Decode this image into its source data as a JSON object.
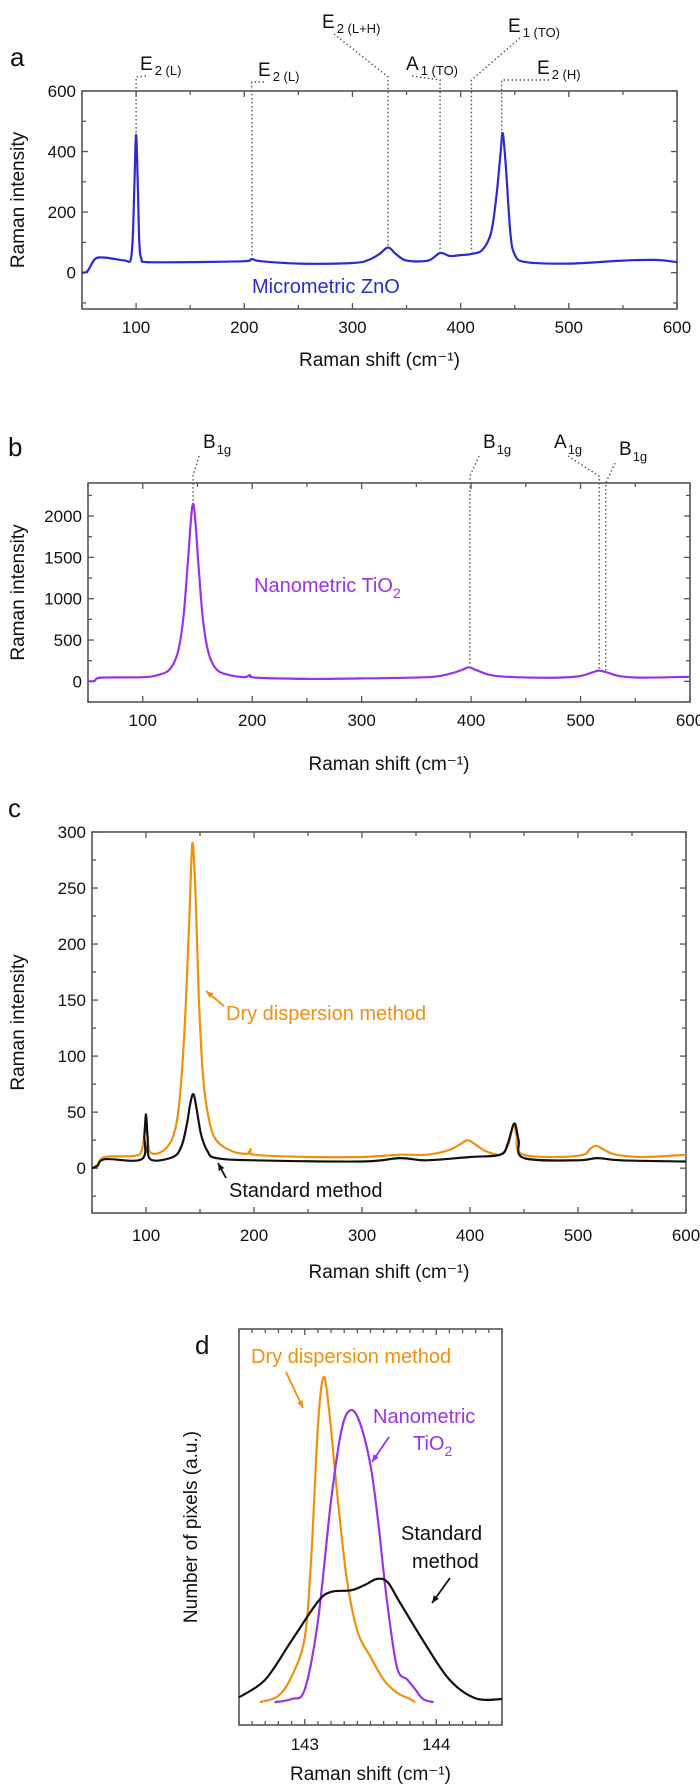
{
  "colors": {
    "zno": "#2b2bd0",
    "tio2": "#9a33e6",
    "dry": "#f0900f",
    "standard": "#111111",
    "frame": "#555555"
  },
  "chart_data": [
    {
      "panel": "a",
      "type": "line",
      "xlabel": "Raman shift (cm⁻¹)",
      "ylabel": "Raman intensity",
      "xlim": [
        50,
        600
      ],
      "ylim": [
        -120,
        600
      ],
      "xticks": [
        100,
        200,
        300,
        400,
        500,
        600
      ],
      "yticks": [
        0,
        200,
        400,
        600
      ],
      "series": [
        {
          "name": "Micrometric ZnO",
          "color_key": "zno",
          "points": [
            [
              50,
              0
            ],
            [
              55,
              5
            ],
            [
              62,
              45
            ],
            [
              70,
              50
            ],
            [
              80,
              45
            ],
            [
              90,
              40
            ],
            [
              95,
              42
            ],
            [
              97,
              120
            ],
            [
              98.5,
              300
            ],
            [
              100,
              455
            ],
            [
              101.5,
              300
            ],
            [
              103,
              100
            ],
            [
              105,
              45
            ],
            [
              110,
              35
            ],
            [
              150,
              35
            ],
            [
              200,
              38
            ],
            [
              207,
              45
            ],
            [
              215,
              38
            ],
            [
              250,
              30
            ],
            [
              300,
              32
            ],
            [
              315,
              42
            ],
            [
              325,
              62
            ],
            [
              333,
              83
            ],
            [
              340,
              62
            ],
            [
              350,
              40
            ],
            [
              370,
              40
            ],
            [
              381,
              65
            ],
            [
              390,
              55
            ],
            [
              400,
              58
            ],
            [
              410,
              62
            ],
            [
              420,
              75
            ],
            [
              428,
              130
            ],
            [
              433,
              250
            ],
            [
              437,
              400
            ],
            [
              439,
              460
            ],
            [
              442,
              340
            ],
            [
              446,
              130
            ],
            [
              450,
              60
            ],
            [
              460,
              35
            ],
            [
              500,
              30
            ],
            [
              550,
              40
            ],
            [
              580,
              42
            ],
            [
              600,
              35
            ]
          ]
        }
      ],
      "annotation_text": "Micrometric ZnO",
      "peak_labels": [
        {
          "base": "E",
          "sub": "2 (L)",
          "x": 100
        },
        {
          "base": "E",
          "sub": "2 (L)",
          "x": 207
        },
        {
          "base": "E",
          "sub": "2 (L+H)",
          "x": 333
        },
        {
          "base": "A",
          "sub": "1 (TO)",
          "x": 381
        },
        {
          "base": "E",
          "sub": "1 (TO)",
          "x": 410
        },
        {
          "base": "E",
          "sub": "2 (H)",
          "x": 438
        }
      ]
    },
    {
      "panel": "b",
      "type": "line",
      "xlabel": "Raman shift (cm⁻¹)",
      "ylabel": "Raman intensity",
      "xlim": [
        50,
        600
      ],
      "ylim": [
        -250,
        2400
      ],
      "xticks": [
        100,
        200,
        300,
        400,
        500,
        600
      ],
      "yticks": [
        0,
        500,
        1000,
        1500,
        2000
      ],
      "series": [
        {
          "name": "Nanometric TiO2",
          "color_key": "tio2",
          "points": [
            [
              50,
              0
            ],
            [
              56,
              5
            ],
            [
              62,
              45
            ],
            [
              100,
              50
            ],
            [
              115,
              80
            ],
            [
              125,
              150
            ],
            [
              132,
              350
            ],
            [
              137,
              750
            ],
            [
              141,
              1400
            ],
            [
              144,
              1950
            ],
            [
              146,
              2150
            ],
            [
              148,
              1950
            ],
            [
              151,
              1400
            ],
            [
              155,
              750
            ],
            [
              160,
              350
            ],
            [
              167,
              150
            ],
            [
              178,
              80
            ],
            [
              193,
              50
            ],
            [
              198,
              75
            ],
            [
              203,
              45
            ],
            [
              250,
              30
            ],
            [
              300,
              35
            ],
            [
              360,
              50
            ],
            [
              380,
              90
            ],
            [
              392,
              140
            ],
            [
              398,
              170
            ],
            [
              405,
              135
            ],
            [
              418,
              75
            ],
            [
              440,
              50
            ],
            [
              480,
              45
            ],
            [
              500,
              65
            ],
            [
              510,
              105
            ],
            [
              517,
              130
            ],
            [
              525,
              105
            ],
            [
              535,
              65
            ],
            [
              555,
              45
            ],
            [
              600,
              55
            ]
          ]
        }
      ],
      "annotation_text": {
        "main": "Nanometric TiO",
        "sub": "2"
      },
      "peak_labels": [
        {
          "base": "B",
          "sub": "1g",
          "x": 146
        },
        {
          "base": "B",
          "sub": "1g",
          "x": 399
        },
        {
          "base": "A",
          "sub": "1g",
          "x": 517
        },
        {
          "base": "B",
          "sub": "1g",
          "x": 523
        }
      ]
    },
    {
      "panel": "c",
      "type": "line",
      "xlabel": "Raman shift (cm⁻¹)",
      "ylabel": "Raman intensity",
      "xlim": [
        50,
        600
      ],
      "ylim": [
        -40,
        300
      ],
      "xticks": [
        100,
        200,
        300,
        400,
        500,
        600
      ],
      "yticks": [
        0,
        50,
        100,
        150,
        200,
        250,
        300
      ],
      "series": [
        {
          "name": "Dry dispersion method",
          "color_key": "dry",
          "points": [
            [
              50,
              0
            ],
            [
              55,
              3
            ],
            [
              62,
              10
            ],
            [
              90,
              11
            ],
            [
              96,
              16
            ],
            [
              98.5,
              30
            ],
            [
              100,
              40
            ],
            [
              101.5,
              28
            ],
            [
              104,
              14
            ],
            [
              115,
              15
            ],
            [
              125,
              28
            ],
            [
              131,
              60
            ],
            [
              136,
              130
            ],
            [
              140,
              220
            ],
            [
              143,
              290
            ],
            [
              146,
              240
            ],
            [
              149,
              150
            ],
            [
              153,
              80
            ],
            [
              158,
              45
            ],
            [
              165,
              25
            ],
            [
              180,
              15
            ],
            [
              195,
              13
            ],
            [
              197,
              17
            ],
            [
              200,
              12
            ],
            [
              250,
              10
            ],
            [
              300,
              10
            ],
            [
              335,
              12
            ],
            [
              360,
              12
            ],
            [
              380,
              16
            ],
            [
              392,
              22
            ],
            [
              398,
              25
            ],
            [
              405,
              21
            ],
            [
              415,
              15
            ],
            [
              428,
              12
            ],
            [
              435,
              20
            ],
            [
              440,
              38
            ],
            [
              443,
              30
            ],
            [
              447,
              13
            ],
            [
              480,
              10
            ],
            [
              505,
              12
            ],
            [
              511,
              17
            ],
            [
              517,
              20
            ],
            [
              525,
              16
            ],
            [
              535,
              12
            ],
            [
              560,
              10
            ],
            [
              600,
              12
            ]
          ]
        },
        {
          "name": "Standard method",
          "color_key": "standard",
          "points": [
            [
              50,
              0
            ],
            [
              55,
              2
            ],
            [
              62,
              8
            ],
            [
              96,
              8
            ],
            [
              98.5,
              30
            ],
            [
              100,
              48
            ],
            [
              101.5,
              28
            ],
            [
              104,
              8
            ],
            [
              125,
              10
            ],
            [
              133,
              20
            ],
            [
              138,
              40
            ],
            [
              141,
              58
            ],
            [
              144,
              66
            ],
            [
              147,
              52
            ],
            [
              151,
              30
            ],
            [
              157,
              15
            ],
            [
              165,
              9
            ],
            [
              200,
              7
            ],
            [
              300,
              6
            ],
            [
              335,
              9
            ],
            [
              360,
              7
            ],
            [
              400,
              10
            ],
            [
              428,
              12
            ],
            [
              435,
              22
            ],
            [
              441,
              40
            ],
            [
              445,
              25
            ],
            [
              450,
              9
            ],
            [
              500,
              7
            ],
            [
              518,
              9
            ],
            [
              540,
              7
            ],
            [
              600,
              6
            ]
          ]
        }
      ],
      "annotations": [
        "Dry dispersion method",
        "Standard method"
      ]
    },
    {
      "panel": "d",
      "type": "line",
      "xlabel": "Raman shift (cm⁻¹)",
      "ylabel": "Number of pixels (a.u.)",
      "xlim": [
        142.5,
        144.5
      ],
      "ylim": [
        -0.07,
        1.15
      ],
      "xticks": [
        143,
        144
      ],
      "yticks": [],
      "series": [
        {
          "name": "Dry dispersion method",
          "color_key": "dry",
          "points": [
            [
              142.66,
              0
            ],
            [
              142.8,
              0.02
            ],
            [
              142.9,
              0.08
            ],
            [
              143.0,
              0.2
            ],
            [
              143.05,
              0.45
            ],
            [
              143.1,
              0.85
            ],
            [
              143.14,
              1.0
            ],
            [
              143.18,
              0.92
            ],
            [
              143.25,
              0.63
            ],
            [
              143.32,
              0.38
            ],
            [
              143.4,
              0.22
            ],
            [
              143.5,
              0.14
            ],
            [
              143.6,
              0.07
            ],
            [
              143.7,
              0.03
            ],
            [
              143.8,
              0.01
            ],
            [
              143.84,
              0.0
            ]
          ]
        },
        {
          "name": "Nanometric TiO2",
          "color_key": "tio2",
          "points": [
            [
              142.77,
              0
            ],
            [
              142.9,
              0.01
            ],
            [
              143.0,
              0.04
            ],
            [
              143.1,
              0.25
            ],
            [
              143.2,
              0.62
            ],
            [
              143.28,
              0.84
            ],
            [
              143.35,
              0.9
            ],
            [
              143.42,
              0.86
            ],
            [
              143.5,
              0.73
            ],
            [
              143.56,
              0.55
            ],
            [
              143.62,
              0.33
            ],
            [
              143.7,
              0.11
            ],
            [
              143.78,
              0.07
            ],
            [
              143.84,
              0.04
            ],
            [
              143.9,
              0.01
            ],
            [
              143.98,
              0.0
            ]
          ]
        },
        {
          "name": "Standard method",
          "color_key": "standard",
          "points": [
            [
              142.5,
              0.015
            ],
            [
              142.7,
              0.07
            ],
            [
              142.9,
              0.19
            ],
            [
              143.1,
              0.31
            ],
            [
              143.2,
              0.34
            ],
            [
              143.35,
              0.345
            ],
            [
              143.45,
              0.36
            ],
            [
              143.55,
              0.38
            ],
            [
              143.63,
              0.37
            ],
            [
              143.72,
              0.31
            ],
            [
              143.9,
              0.19
            ],
            [
              144.1,
              0.07
            ],
            [
              144.3,
              0.012
            ],
            [
              144.5,
              0.01
            ]
          ]
        }
      ],
      "annotations": {
        "dry": "Dry dispersion method",
        "tio2_line1": "Nanometric",
        "tio2_line2_main": "TiO",
        "tio2_line2_sub": "2",
        "standard_line1": "Standard",
        "standard_line2": "method"
      }
    }
  ]
}
